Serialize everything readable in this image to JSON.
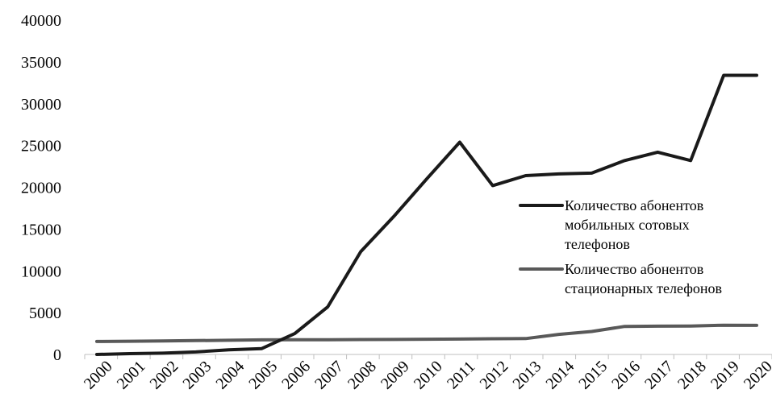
{
  "chart_data": {
    "type": "line",
    "x": [
      "2000",
      "2001",
      "2002",
      "2003",
      "2004",
      "2005",
      "2006",
      "2007",
      "2008",
      "2009",
      "2010",
      "2011",
      "2012",
      "2013",
      "2014",
      "2015",
      "2016",
      "2017",
      "2018",
      "2019",
      "2020"
    ],
    "ylim": [
      0,
      40000
    ],
    "yticks": [
      0,
      5000,
      10000,
      15000,
      20000,
      25000,
      30000,
      35000,
      40000
    ],
    "grid": false,
    "legend_position": "right",
    "series": [
      {
        "name": "Количество абонентов мобильных сотовых телефонов",
        "name_lines": [
          "Количество абонентов",
          "мобильных сотовых",
          "телефонов"
        ],
        "color": "#1a1a1a",
        "values": [
          0,
          100,
          150,
          300,
          550,
          700,
          2500,
          5700,
          12300,
          16500,
          21000,
          25400,
          20200,
          21400,
          21600,
          21700,
          23200,
          24200,
          23200,
          33400,
          33400
        ]
      },
      {
        "name": "Количество абонентов стационарных телефонов",
        "name_lines": [
          "Количество абонентов",
          "стационарных телефонов"
        ],
        "color": "#595959",
        "values": [
          1550,
          1580,
          1620,
          1660,
          1700,
          1740,
          1760,
          1760,
          1780,
          1790,
          1820,
          1840,
          1880,
          1900,
          2400,
          2750,
          3350,
          3380,
          3400,
          3500,
          3480
        ]
      }
    ]
  }
}
